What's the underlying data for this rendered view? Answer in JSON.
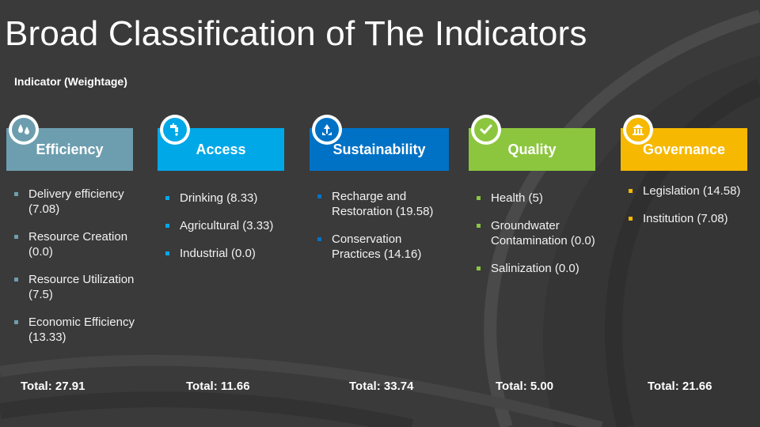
{
  "slide": {
    "title": "Broad Classification of The Indicators",
    "subtitle": "Indicator (Weightage)"
  },
  "categories": [
    {
      "name": "Efficiency",
      "color": "#6d9eaf",
      "icon": "water-drops-icon",
      "items": [
        "Delivery efficiency (7.08)",
        "Resource Creation (0.0)",
        "Resource Utilization (7.5)",
        "Economic Efficiency (13.33)"
      ],
      "total": "Total: 27.91"
    },
    {
      "name": "Access",
      "color": "#00a8e8",
      "icon": "faucet-icon",
      "items": [
        "Drinking (8.33)",
        "Agricultural (3.33)",
        "Industrial (0.0)"
      ],
      "total": "Total: 11.66"
    },
    {
      "name": "Sustainability",
      "color": "#0072c6",
      "icon": "recycle-icon",
      "items": [
        "Recharge and Restoration (19.58)",
        "Conservation Practices (14.16)"
      ],
      "total": "Total: 33.74"
    },
    {
      "name": "Quality",
      "color": "#8cc63f",
      "icon": "checkmark-icon",
      "items": [
        "Health (5)",
        "Groundwater Contamination (0.0)",
        "Salinization (0.0)"
      ],
      "total": "Total: 5.00"
    },
    {
      "name": "Governance",
      "color": "#f6b800",
      "icon": "government-building-icon",
      "items": [
        "Legislation (14.58)",
        "Institution (7.08)"
      ],
      "total": "Total: 21.66"
    }
  ]
}
